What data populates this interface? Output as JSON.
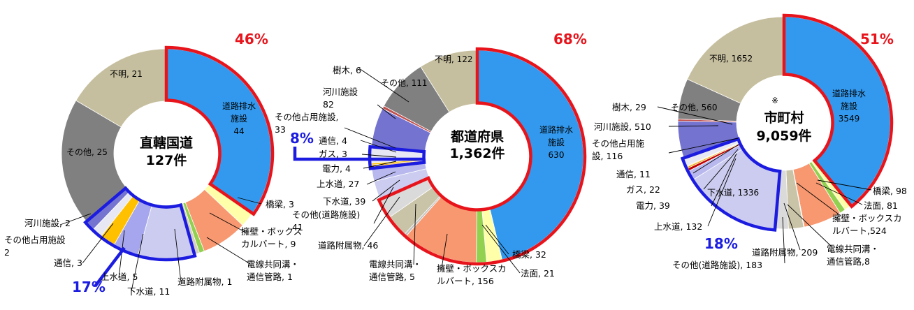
{
  "chart_data": [
    {
      "type": "pie",
      "donut": true,
      "center_label": [
        "直轄国道",
        "127件"
      ],
      "slices": [
        {
          "label": "道路排水施設",
          "value": 44,
          "color": "#3399ee"
        },
        {
          "label": "橋梁",
          "value": 3,
          "color": "#ffffaa"
        },
        {
          "label": "擁壁・ボックスカルバート",
          "value": 9,
          "color": "#f79870"
        },
        {
          "label": "電線共同溝・通信管路",
          "value": 1,
          "color": "#92d050"
        },
        {
          "label": "道路附属物",
          "value": 1,
          "color": "#d5d0bf"
        },
        {
          "label": "下水道",
          "value": 11,
          "color": "#ccccf0"
        },
        {
          "label": "上水道",
          "value": 5,
          "color": "#a6a6ee"
        },
        {
          "label": "通信",
          "value": 3,
          "color": "#ffc000"
        },
        {
          "label": "その他占用施設",
          "value": 2,
          "color": "#e8e8f4"
        },
        {
          "label": "河川施設",
          "value": 2,
          "color": "#7474d0"
        },
        {
          "label": "その他",
          "value": 25,
          "color": "#808080"
        },
        {
          "label": "不明",
          "value": 21,
          "color": "#c6bf9f"
        }
      ],
      "labels": [
        "道路排水\n施設\n44",
        "橋梁, 3",
        "擁壁・ボックス\nカルバート, 9",
        "電線共同溝・\n通信管路, 1",
        "道路附属物, 1",
        "下水道, 11",
        "上水道, 5",
        "通信, 3",
        "その他占用施設\n2",
        "河川施設, 2",
        "その他, 25",
        "不明, 21"
      ],
      "callouts": [
        "46%",
        "17%"
      ]
    },
    {
      "type": "pie",
      "donut": true,
      "center_label": [
        "都道府県",
        "1,362件"
      ],
      "slices": [
        {
          "label": "道路排水施設",
          "value": 630,
          "color": "#3399ee"
        },
        {
          "label": "橋梁",
          "value": 32,
          "color": "#ffffaa"
        },
        {
          "label": "法面",
          "value": 21,
          "color": "#92d050"
        },
        {
          "label": "擁壁・ボックスカルバート",
          "value": 156,
          "color": "#f79870"
        },
        {
          "label": "電線共同溝・通信管路",
          "value": 5,
          "color": "#bfbfbf"
        },
        {
          "label": "道路附属物",
          "value": 46,
          "color": "#c9c3a8"
        },
        {
          "label": "その他(道路施設)",
          "value": 41,
          "color": "#dadada"
        },
        {
          "label": "下水道",
          "value": 39,
          "color": "#ccccf0"
        },
        {
          "label": "上水道",
          "value": 27,
          "color": "#b8b8ee"
        },
        {
          "label": "電力",
          "value": 4,
          "color": "#c00000"
        },
        {
          "label": "ガス",
          "value": 3,
          "color": "#f0a000"
        },
        {
          "label": "通信",
          "value": 4,
          "color": "#ffc000"
        },
        {
          "label": "その他占用施設",
          "value": 33,
          "color": "#e8e8f4"
        },
        {
          "label": "河川施設",
          "value": 82,
          "color": "#7474d0"
        },
        {
          "label": "樹木",
          "value": 6,
          "color": "#c0504d"
        },
        {
          "label": "その他",
          "value": 111,
          "color": "#808080"
        },
        {
          "label": "不明",
          "value": 122,
          "color": "#c6bf9f"
        }
      ],
      "labels": [
        "道路排水\n施設\n630",
        "橋梁, 32",
        "法面, 21",
        "擁壁・ボックスカ\nルバート, 156",
        "電線共同溝・\n通信管路, 5",
        "道路附属物, 46",
        "その他(道路施設)\n41",
        "下水道, 39",
        "上水道, 27",
        "電力, 4",
        "ガス, 3",
        "通信, 4",
        "その他占用施設,\n33",
        "河川施設\n82",
        "樹木, 6",
        "その他, 111",
        "不明, 122"
      ],
      "callouts": [
        "68%",
        "8%"
      ]
    },
    {
      "type": "pie",
      "donut": true,
      "center_label": [
        "市町村",
        "9,059件"
      ],
      "center_note": "※",
      "slices": [
        {
          "label": "道路排水施設",
          "value": 3549,
          "color": "#3399ee"
        },
        {
          "label": "橋梁",
          "value": 98,
          "color": "#ffffaa"
        },
        {
          "label": "法面",
          "value": 81,
          "color": "#92d050"
        },
        {
          "label": "擁壁・ボックスカルバート",
          "value": 524,
          "color": "#f79870"
        },
        {
          "label": "電線共同溝・通信管路",
          "value": 8,
          "color": "#bfbfbf"
        },
        {
          "label": "道路附属物",
          "value": 209,
          "color": "#c9c3a8"
        },
        {
          "label": "その他(道路施設)",
          "value": 183,
          "color": "#dadada"
        },
        {
          "label": "下水道",
          "value": 1336,
          "color": "#ccccf0"
        },
        {
          "label": "上水道",
          "value": 132,
          "color": "#b8b8ee"
        },
        {
          "label": "電力",
          "value": 39,
          "color": "#c00000"
        },
        {
          "label": "ガス",
          "value": 22,
          "color": "#f0a000"
        },
        {
          "label": "通信",
          "value": 11,
          "color": "#ffc000"
        },
        {
          "label": "その他占用施設",
          "value": 116,
          "color": "#e8e8f4"
        },
        {
          "label": "河川施設",
          "value": 510,
          "color": "#7474d0"
        },
        {
          "label": "樹木",
          "value": 29,
          "color": "#c0504d"
        },
        {
          "label": "その他",
          "value": 560,
          "color": "#808080"
        },
        {
          "label": "不明",
          "value": 1652,
          "color": "#c6bf9f"
        }
      ],
      "labels": [
        "道路排水\n施設\n3549",
        "橋梁, 98",
        "法面, 81",
        "擁壁・ボックスカ\nルバート,524",
        "電線共同溝・\n通信管路,8",
        "道路附属物, 209",
        "その他(道路施設), 183",
        "下水道, 1336",
        "上水道, 132",
        "電力, 39",
        "ガス, 22",
        "通信, 11",
        "その他占用施\n設, 116",
        "河川施設, 510",
        "樹木, 29",
        "その他, 560",
        "不明, 1652"
      ],
      "callouts": [
        "51%",
        "18%"
      ]
    }
  ]
}
